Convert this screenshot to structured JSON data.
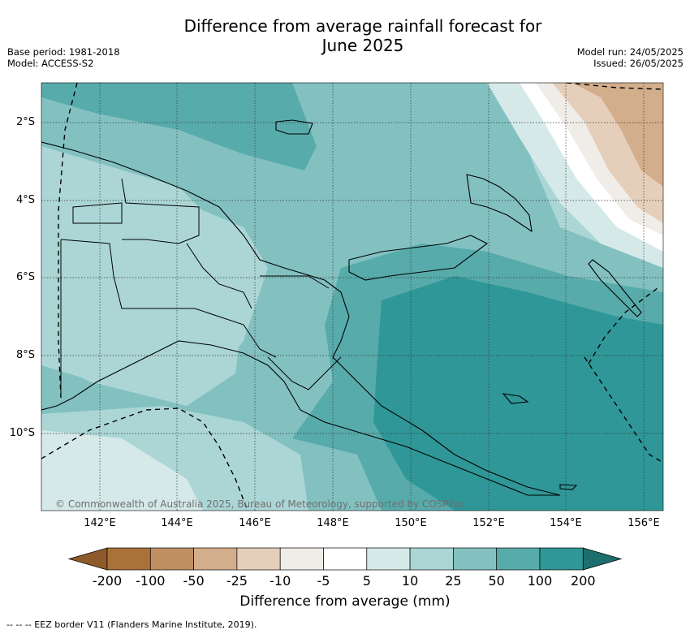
{
  "title": {
    "line1": "Difference from average rainfall forecast for",
    "line2": "June 2025"
  },
  "meta": {
    "base_period": "Base period: 1981-2018",
    "model": "Model: ACCESS-S2",
    "model_run": "Model run: 24/05/2025",
    "issued": "Issued: 26/05/2025"
  },
  "map": {
    "lat_labels": [
      "2°S",
      "4°S",
      "6°S",
      "8°S",
      "10°S"
    ],
    "lon_labels": [
      "142°E",
      "144°E",
      "146°E",
      "148°E",
      "150°E",
      "152°E",
      "154°E",
      "156°E"
    ],
    "copyright": "© Commonwealth of Australia 2025, Bureau of Meteorology, supported by COSPPac"
  },
  "colorbar": {
    "title": "Difference from average (mm)",
    "tick_labels": [
      "-200",
      "-100",
      "-50",
      "-25",
      "-10",
      "-5",
      "5",
      "10",
      "25",
      "50",
      "100",
      "200"
    ],
    "colors": [
      "#8f5a2b",
      "#a97238",
      "#c08f62",
      "#d3ae8c",
      "#e5cfbb",
      "#f0ede8",
      "#ffffff",
      "#d4e9e8",
      "#acd6d6",
      "#83c1c1",
      "#58abab",
      "#2f9797",
      "#1e6e6e"
    ]
  },
  "footnote": "-- -- -- EEZ border V11 (Flanders Marine Institute, 2019)."
}
